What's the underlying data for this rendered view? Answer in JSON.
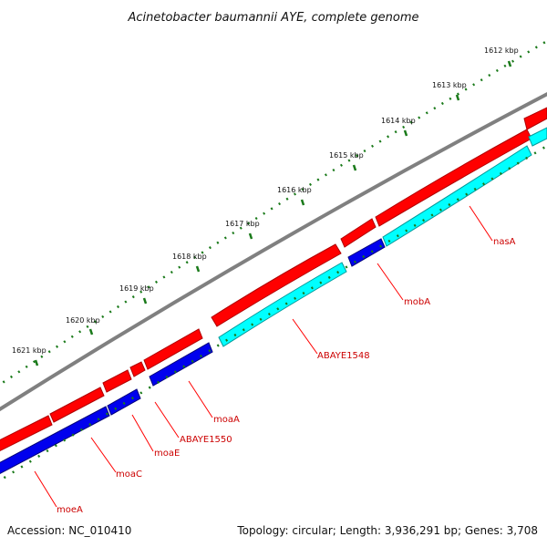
{
  "title": "Acinetobacter baumannii AYE, complete genome",
  "footer": {
    "accession": "Accession: NC_010410",
    "summary": "Topology: circular; Length: 3,936,291 bp; Genes: 3,708"
  },
  "colors": {
    "backbone": "#808080",
    "forward_feature": "#ff0000",
    "reverse_feature": "#0000ee",
    "reverse_rna_like": "#00ffff",
    "label": "#cc0000",
    "tick": "#1a7a1a"
  },
  "kbp_ticks": [
    "1612 kbp",
    "1613 kbp",
    "1614 kbp",
    "1615 kbp",
    "1616 kbp",
    "1617 kbp",
    "1618 kbp",
    "1619 kbp",
    "1620 kbp",
    "1621 kbp"
  ],
  "gene_labels": [
    "nasA",
    "mobA",
    "ABAYE1548",
    "moaA",
    "ABAYE1550",
    "moaE",
    "moaC",
    "moeA"
  ]
}
